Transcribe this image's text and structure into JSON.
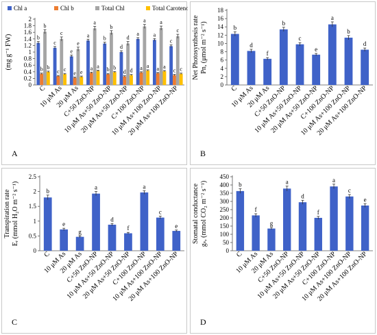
{
  "figure": {
    "categories": [
      "C",
      "10 μM As",
      "20 μM As",
      "C+50 ZnO-NP",
      "10 μM As+50 ZnO-NP",
      "20 μM As+50 ZnO-NP",
      "C+100 ZnO-NP",
      "10 μM As+100 ZnO-NP",
      "20 μM As+100 ZnO-NP"
    ]
  },
  "chart_data": [
    {
      "panel": "A",
      "type": "bar",
      "ylabel": "(mg g⁻¹ FW)",
      "ylim": [
        0,
        2
      ],
      "yticks": [
        "0",
        "0.2",
        "0.4",
        "0.6",
        "0.8",
        "1",
        "1.2",
        "1.4",
        "1.6",
        "1.8",
        "2"
      ],
      "legend_position": "top",
      "colors": {
        "Chl a": "#3f62c8",
        "Chl b": "#ed7d31",
        "Total Chl": "#a5a5a5",
        "Total Carotenoid": "#ffc000"
      },
      "series": [
        {
          "name": "Chl a",
          "values": [
            1.28,
            1.13,
            0.87,
            1.35,
            1.26,
            1.0,
            1.4,
            1.37,
            1.18
          ],
          "letters": [
            "b",
            "c",
            "e",
            "a",
            "b",
            "d",
            "a",
            "a",
            "c"
          ],
          "errors": [
            0.04,
            0.04,
            0.04,
            0.04,
            0.04,
            0.04,
            0.04,
            0.04,
            0.04
          ]
        },
        {
          "name": "Chl b",
          "values": [
            0.34,
            0.27,
            0.22,
            0.37,
            0.33,
            0.26,
            0.38,
            0.36,
            0.3
          ],
          "letters": [
            "b",
            "c",
            "e",
            "a",
            "b",
            "d",
            "a",
            "a",
            "c"
          ],
          "errors": [
            0.02,
            0.02,
            0.02,
            0.02,
            0.02,
            0.02,
            0.02,
            0.02,
            0.02
          ]
        },
        {
          "name": "Total Chl",
          "values": [
            1.62,
            1.4,
            1.09,
            1.72,
            1.59,
            1.26,
            1.78,
            1.73,
            1.48
          ],
          "letters": [
            "b",
            "c",
            "e",
            "a",
            "b",
            "d",
            "a",
            "a",
            "c"
          ],
          "errors": [
            0.06,
            0.06,
            0.06,
            0.06,
            0.06,
            0.06,
            0.06,
            0.06,
            0.06
          ]
        },
        {
          "name": "Total Carotenoid",
          "values": [
            0.4,
            0.33,
            0.25,
            0.43,
            0.39,
            0.3,
            0.44,
            0.42,
            0.34
          ],
          "letters": [
            "b",
            "c",
            "e",
            "a",
            "b",
            "d",
            "a",
            "a",
            "c"
          ],
          "errors": [
            0.02,
            0.02,
            0.02,
            0.02,
            0.02,
            0.02,
            0.02,
            0.02,
            0.02
          ]
        }
      ]
    },
    {
      "panel": "B",
      "type": "bar",
      "ylabel": [
        "Net Photosynthesis rate",
        "Pn, (μmol m⁻² s⁻¹)"
      ],
      "ylim": [
        0,
        18
      ],
      "yticks": [
        "0",
        "2",
        "4",
        "6",
        "8",
        "10",
        "12",
        "14",
        "16",
        "18"
      ],
      "colors": {
        "bars": "#3f62c8"
      },
      "series": [
        {
          "values": [
            12.3,
            8.2,
            6.3,
            13.4,
            9.8,
            7.3,
            14.6,
            11.4,
            8.5
          ],
          "letters": [
            "b",
            "d",
            "f",
            "b",
            "c",
            "e",
            "a",
            "b",
            "d"
          ],
          "errors": [
            0.5,
            0.4,
            0.3,
            0.5,
            0.4,
            0.3,
            0.6,
            0.5,
            0.4
          ]
        }
      ]
    },
    {
      "panel": "C",
      "type": "bar",
      "ylabel": [
        "Transpiration rate",
        "Eᵣ (mmol H₂O m⁻² s⁻¹)"
      ],
      "ylim": [
        0,
        2.5
      ],
      "yticks": [
        "0",
        "0.5",
        "1",
        "1.5",
        "2",
        "2.5"
      ],
      "colors": {
        "bars": "#3f62c8"
      },
      "series": [
        {
          "values": [
            1.8,
            0.72,
            0.47,
            1.93,
            0.88,
            0.59,
            1.97,
            1.12,
            0.67
          ],
          "letters": [
            "b",
            "e",
            "g",
            "a",
            "d",
            "f",
            "a",
            "c",
            "e"
          ],
          "errors": [
            0.08,
            0.04,
            0.03,
            0.07,
            0.04,
            0.03,
            0.06,
            0.05,
            0.03
          ]
        }
      ]
    },
    {
      "panel": "D",
      "type": "bar",
      "ylabel": [
        "Stomatal conductance",
        "gₛ, (mmol CO₂ m⁻² s⁻¹)"
      ],
      "ylim": [
        0,
        450
      ],
      "yticks": [
        "0",
        "50",
        "100",
        "150",
        "200",
        "250",
        "300",
        "350",
        "400",
        "450"
      ],
      "colors": {
        "bars": "#3f62c8"
      },
      "series": [
        {
          "values": [
            363,
            215,
            135,
            378,
            295,
            200,
            391,
            330,
            275
          ],
          "letters": [
            "b",
            "f",
            "g",
            "a",
            "d",
            "f",
            "a",
            "c",
            "e"
          ],
          "errors": [
            14,
            10,
            7,
            15,
            12,
            9,
            14,
            12,
            11
          ]
        }
      ]
    }
  ]
}
